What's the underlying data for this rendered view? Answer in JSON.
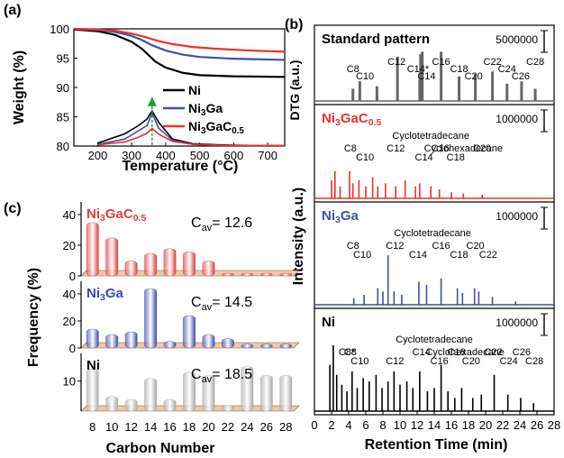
{
  "panel_labels": {
    "a": "(a)",
    "b": "(b)",
    "c": "(c)"
  },
  "chart_data": [
    {
      "panel": "(a)",
      "type": "line",
      "xlabel": "Temperature (°C)",
      "ylabel": "Weight (%)",
      "y2label": "DTG (a.u.)",
      "xlim": [
        130,
        750
      ],
      "ylim": [
        80,
        100
      ],
      "xticks": [
        200,
        300,
        400,
        500,
        600,
        700
      ],
      "yticks": [
        80,
        85,
        90,
        95,
        100
      ],
      "legend": [
        {
          "label": "Ni",
          "color": "#000000"
        },
        {
          "label": "Ni3Ga",
          "color": "#3f4fa8"
        },
        {
          "label": "Ni3GaC0.5",
          "color": "#e8332a"
        }
      ],
      "series": [
        {
          "name": "Ni",
          "color": "#000000",
          "x": [
            130,
            200,
            250,
            300,
            330,
            350,
            370,
            400,
            450,
            500,
            600,
            750
          ],
          "y": [
            99.9,
            99.6,
            99.0,
            97.8,
            96.6,
            95.5,
            94.4,
            93.4,
            92.5,
            92.1,
            91.9,
            91.8
          ],
          "dtg": {
            "x": [
              200,
              280,
              320,
              345,
              360,
              380,
              420,
              480,
              560,
              650,
              750
            ],
            "y": [
              80.5,
              82.1,
              83.5,
              84.6,
              86.0,
              84.0,
              81.2,
              80.4,
              80.2,
              80.1,
              80.1
            ]
          }
        },
        {
          "name": "Ni3Ga",
          "color": "#3f4fa8",
          "x": [
            130,
            200,
            250,
            300,
            330,
            360,
            400,
            450,
            500,
            600,
            750
          ],
          "y": [
            100,
            99.8,
            99.5,
            98.8,
            98.1,
            97.2,
            96.3,
            95.6,
            95.2,
            94.9,
            94.7
          ],
          "dtg": {
            "x": [
              200,
              280,
              320,
              345,
              360,
              380,
              420,
              480,
              560,
              650,
              750
            ],
            "y": [
              80.3,
              81.2,
              82.6,
              83.5,
              85.6,
              83.0,
              81.0,
              80.3,
              80.1,
              80.1,
              80.1
            ]
          }
        },
        {
          "name": "Ni3GaC0.5",
          "color": "#e8332a",
          "x": [
            130,
            200,
            250,
            300,
            340,
            380,
            420,
            480,
            550,
            650,
            750
          ],
          "y": [
            100,
            99.9,
            99.7,
            99.2,
            98.6,
            97.9,
            97.4,
            96.9,
            96.6,
            96.3,
            96.1
          ],
          "dtg": {
            "x": [
              200,
              280,
              320,
              345,
              360,
              380,
              420,
              480,
              560,
              650,
              750
            ],
            "y": [
              80.2,
              80.7,
              81.5,
              82.2,
              83.0,
              82.0,
              80.8,
              80.3,
              80.1,
              80.1,
              80.1
            ]
          }
        }
      ]
    },
    {
      "panel": "(b)",
      "type": "line",
      "xlabel": "Retention Time (min)",
      "ylabel": "Intensity (a.u.)",
      "xlim": [
        0,
        28
      ],
      "xticks": [
        0,
        2,
        4,
        6,
        8,
        10,
        12,
        14,
        16,
        18,
        20,
        22,
        24,
        26,
        28
      ],
      "subpanels": [
        {
          "title": "Standard pattern",
          "color": "#666666",
          "scale_label": "5000000",
          "peaks": [
            [
              4.5,
              0.25
            ],
            [
              5.3,
              0.4
            ],
            [
              7.3,
              0.3
            ],
            [
              9.7,
              0.9
            ],
            [
              12.3,
              0.45
            ],
            [
              12.4,
              0.95
            ],
            [
              12.6,
              1.0
            ],
            [
              14.8,
              1.0
            ],
            [
              16.9,
              0.5
            ],
            [
              18.8,
              0.55
            ],
            [
              20.8,
              0.6
            ],
            [
              22.5,
              0.35
            ],
            [
              24.2,
              0.4
            ],
            [
              25.8,
              0.25
            ]
          ],
          "labels": [
            {
              "text": "C8",
              "x": 4.5
            },
            {
              "text": "C10",
              "x": 5.9
            },
            {
              "text": "C12",
              "x": 9.6
            },
            {
              "text": "C14*",
              "x": 12.1
            },
            {
              "text": "C14",
              "x": 13.1
            },
            {
              "text": "C16",
              "x": 14.8
            },
            {
              "text": "C18",
              "x": 16.9
            },
            {
              "text": "C20",
              "x": 18.6
            },
            {
              "text": "C22",
              "x": 20.8
            },
            {
              "text": "C24",
              "x": 22.5
            },
            {
              "text": "C26",
              "x": 24.1
            },
            {
              "text": "C28",
              "x": 25.8
            }
          ]
        },
        {
          "title": "Ni3GaC0.5",
          "color": "#e8332a",
          "scale_label": "1000000",
          "peaks": [
            [
              2.0,
              0.3
            ],
            [
              2.4,
              0.45
            ],
            [
              3.0,
              0.2
            ],
            [
              4.1,
              0.45
            ],
            [
              4.5,
              0.25
            ],
            [
              5.2,
              0.3
            ],
            [
              6.0,
              0.2
            ],
            [
              6.8,
              0.35
            ],
            [
              7.4,
              0.2
            ],
            [
              8.3,
              0.25
            ],
            [
              9.5,
              0.2
            ],
            [
              10.6,
              0.3
            ],
            [
              11.8,
              0.2
            ],
            [
              12.3,
              0.25
            ],
            [
              13.6,
              0.2
            ],
            [
              14.6,
              0.15
            ],
            [
              16.0,
              0.1
            ],
            [
              17.4,
              0.08
            ],
            [
              19.6,
              0.06
            ]
          ],
          "labels": [
            {
              "text": "Cyclotetradecane",
              "x": 13.6
            },
            {
              "text": "Cyclohexadecane",
              "x": 17.4
            },
            {
              "text": "C8",
              "x": 4.2
            },
            {
              "text": "C10",
              "x": 5.9
            },
            {
              "text": "C12",
              "x": 9.5
            },
            {
              "text": "C14",
              "x": 12.8
            },
            {
              "text": "C16",
              "x": 14.7
            },
            {
              "text": "C18",
              "x": 16.5
            },
            {
              "text": "C20",
              "x": 19.6
            }
          ]
        },
        {
          "title": "Ni3Ga",
          "color": "#3f4fa8",
          "scale_label": "1000000",
          "peaks": [
            [
              4.6,
              0.1
            ],
            [
              5.8,
              0.15
            ],
            [
              7.4,
              0.25
            ],
            [
              8.0,
              0.2
            ],
            [
              8.6,
              0.75
            ],
            [
              9.3,
              0.2
            ],
            [
              10.2,
              0.15
            ],
            [
              12.2,
              0.35
            ],
            [
              13.1,
              0.3
            ],
            [
              14.8,
              0.4
            ],
            [
              16.7,
              0.25
            ],
            [
              17.3,
              0.18
            ],
            [
              18.7,
              0.25
            ],
            [
              19.2,
              0.2
            ],
            [
              20.8,
              0.12
            ],
            [
              23.5,
              0.05
            ]
          ],
          "labels": [
            {
              "text": "Cyclotetradecane",
              "x": 13.8
            },
            {
              "text": "C8",
              "x": 4.5
            },
            {
              "text": "C10",
              "x": 5.6
            },
            {
              "text": "C12",
              "x": 9.4
            },
            {
              "text": "C14",
              "x": 12.1
            },
            {
              "text": "C16",
              "x": 14.8
            },
            {
              "text": "C18",
              "x": 16.9
            },
            {
              "text": "C20",
              "x": 18.8
            },
            {
              "text": "C22",
              "x": 20.3
            }
          ]
        },
        {
          "title": "Ni",
          "color": "#000000",
          "scale_label": "1000000",
          "peaks": [
            [
              1.8,
              0.7
            ],
            [
              2.2,
              1.0
            ],
            [
              2.6,
              0.55
            ],
            [
              3.2,
              0.4
            ],
            [
              3.8,
              0.3
            ],
            [
              4.4,
              0.6
            ],
            [
              5.0,
              0.35
            ],
            [
              5.7,
              0.5
            ],
            [
              6.4,
              0.45
            ],
            [
              7.2,
              0.55
            ],
            [
              7.9,
              0.35
            ],
            [
              8.6,
              0.45
            ],
            [
              9.3,
              0.6
            ],
            [
              10.0,
              0.4
            ],
            [
              10.8,
              0.45
            ],
            [
              11.5,
              0.35
            ],
            [
              12.3,
              0.6
            ],
            [
              13.2,
              0.3
            ],
            [
              14.0,
              0.35
            ],
            [
              14.8,
              0.7
            ],
            [
              15.6,
              0.3
            ],
            [
              16.4,
              0.2
            ],
            [
              17.2,
              0.35
            ],
            [
              18.5,
              0.2
            ],
            [
              19.5,
              0.25
            ],
            [
              21.0,
              0.55
            ],
            [
              22.6,
              0.25
            ],
            [
              24.1,
              0.2
            ],
            [
              25.6,
              0.12
            ]
          ],
          "labels": [
            {
              "text": "Cyclotetradecane",
              "x": 14.0
            },
            {
              "text": "Cyclohexadecane",
              "x": 17.6
            },
            {
              "text": "C8*",
              "x": 3.8
            },
            {
              "text": "C10",
              "x": 5.3
            },
            {
              "text": "C8",
              "x": 4.2
            },
            {
              "text": "C12",
              "x": 9.4
            },
            {
              "text": "C14",
              "x": 12.5
            },
            {
              "text": "C16",
              "x": 14.6
            },
            {
              "text": "C18",
              "x": 16.6
            },
            {
              "text": "C20",
              "x": 18.3
            },
            {
              "text": "C22",
              "x": 20.9
            },
            {
              "text": "C24",
              "x": 22.7
            },
            {
              "text": "C26",
              "x": 24.2
            },
            {
              "text": "C28",
              "x": 25.7
            }
          ]
        }
      ]
    },
    {
      "panel": "(c)",
      "type": "bar",
      "xlabel": "Carbon Number",
      "ylabel": "Frequency (%)",
      "categories": [
        "8",
        "10",
        "12",
        "14",
        "16",
        "18",
        "20",
        "22",
        "24",
        "26",
        "28"
      ],
      "series": [
        {
          "name": "Ni3GaC0.5",
          "color": "#e03a3a",
          "cav": "Cav= 12.6",
          "ylim": [
            0,
            40
          ],
          "yticks": [
            0,
            20,
            40
          ],
          "values": [
            33,
            23,
            8,
            13,
            16,
            14,
            8,
            0,
            0,
            0,
            0
          ]
        },
        {
          "name": "Ni3Ga",
          "color": "#3a4ab0",
          "cav": "Cav= 14.5",
          "ylim": [
            0,
            40
          ],
          "yticks": [
            0,
            20,
            40
          ],
          "values": [
            12,
            8,
            10,
            42,
            3,
            22,
            8,
            5,
            1,
            1,
            1
          ]
        },
        {
          "name": "Ni",
          "color": "#a8a8a8",
          "cav": "Cav= 18.5",
          "ylim": [
            0,
            15
          ],
          "yticks": [
            10
          ],
          "values": [
            13,
            4,
            3,
            10,
            3,
            12,
            11,
            1,
            14,
            11,
            11
          ]
        }
      ]
    }
  ]
}
